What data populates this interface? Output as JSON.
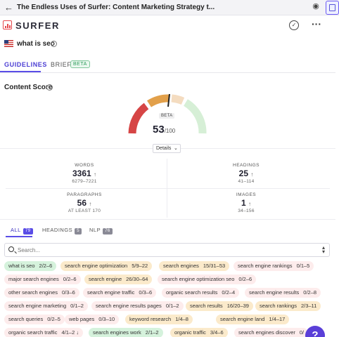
{
  "window": {
    "title": "The Endless Uses of Surfer: Content Marketing Strategy t..."
  },
  "brand": {
    "name": "SURFER"
  },
  "keyword": {
    "text": "what is seo"
  },
  "tabs": {
    "guidelines": "GUIDELINES",
    "brief": "BRIEF",
    "brief_badge": "BETA"
  },
  "content_score": {
    "title": "Content Score",
    "badge": "BETA",
    "score": "53",
    "max": "/100",
    "score_value": 53,
    "score_max": 100,
    "details_label": "Details"
  },
  "stats": {
    "words": {
      "label": "WORDS",
      "value": "3361",
      "arrow": "↑",
      "range": "6279–7221"
    },
    "headings": {
      "label": "HEADINGS",
      "value": "25",
      "arrow": "↑",
      "range": "41–114"
    },
    "paragraphs": {
      "label": "PARAGRAPHS",
      "value": "56",
      "arrow": "↑",
      "range": "AT LEAST 170"
    },
    "images": {
      "label": "IMAGES",
      "value": "1",
      "arrow": "↑",
      "range": "34–156"
    }
  },
  "filter_tabs": {
    "all": {
      "label": "ALL",
      "count": "79"
    },
    "headings": {
      "label": "HEADINGS",
      "count": "5"
    },
    "nlp": {
      "label": "NLP",
      "count": "76"
    }
  },
  "search": {
    "placeholder": "Search..."
  },
  "colors": {
    "accent": "#5a4de6",
    "green": "#d5f2dc",
    "yellow": "#fbeacb",
    "red": "#fdecec",
    "gauge_red": "#d64545",
    "gauge_orange": "#e2a04a",
    "gauge_green": "#cfeccf"
  },
  "terms": [
    [
      {
        "term": "what is seo",
        "count": "2/2–6",
        "status": "green"
      },
      {
        "term": "search engine optimization",
        "count": "5/9–22",
        "status": "yellow"
      },
      {
        "term": "search engines",
        "count": "15/31–53",
        "status": "yellow"
      },
      {
        "term": "search engine rankings",
        "count": "0/1–5",
        "status": "red"
      }
    ],
    [
      {
        "term": "major search engines",
        "count": "0/2–6",
        "status": "red"
      },
      {
        "term": "search engine",
        "count": "26/30–64",
        "status": "yellow"
      },
      {
        "term": "search engine optimization seo",
        "count": "0/2–6",
        "status": "red"
      }
    ],
    [
      {
        "term": "other search engines",
        "count": "0/3–6",
        "status": "red"
      },
      {
        "term": "search engine traffic",
        "count": "0/3–6",
        "status": "red"
      },
      {
        "term": "organic search results",
        "count": "0/2–4",
        "status": "red"
      },
      {
        "term": "search engine results",
        "count": "0/2–8",
        "status": "red"
      }
    ],
    [
      {
        "term": "search engine marketing",
        "count": "0/1–2",
        "status": "red"
      },
      {
        "term": "search engine results pages",
        "count": "0/1–2",
        "status": "red"
      },
      {
        "term": "search results",
        "count": "16/20–39",
        "status": "yellow"
      },
      {
        "term": "search rankings",
        "count": "2/3–11",
        "status": "yellow"
      }
    ],
    [
      {
        "term": "search queries",
        "count": "0/2–5",
        "status": "red"
      },
      {
        "term": "web pages",
        "count": "0/3–10",
        "status": "red"
      },
      {
        "term": "keyword research",
        "count": "1/4–8",
        "status": "yellow"
      },
      {
        "term": "search engine land",
        "count": "1/4–17",
        "status": "yellow"
      }
    ],
    [
      {
        "term": "organic search traffic",
        "count": "4/1–2 ↓",
        "status": "red"
      },
      {
        "term": "search engines work",
        "count": "2/1–2",
        "status": "green"
      },
      {
        "term": "organic traffic",
        "count": "3/4–6",
        "status": "yellow"
      },
      {
        "term": "search engines discover",
        "count": "0/",
        "status": "red"
      }
    ]
  ],
  "help": {
    "label": "?"
  }
}
